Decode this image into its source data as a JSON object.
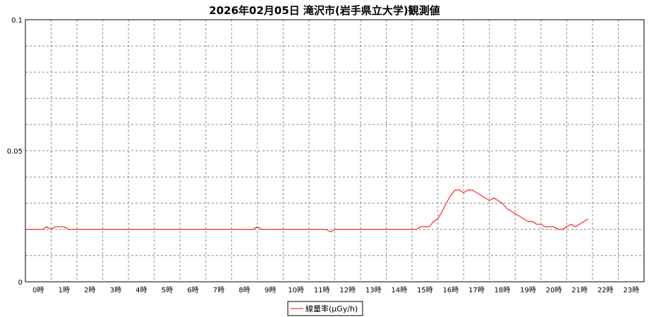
{
  "chart_data": {
    "type": "line",
    "title": "2026年02月05日 滝沢市(岩手県立大学)観測値",
    "xlabel": "",
    "ylabel": "",
    "ylim": [
      0,
      0.1
    ],
    "y_ticks": [
      "0",
      "0.05",
      "0.1"
    ],
    "categories": [
      "0時",
      "1時",
      "2時",
      "3時",
      "4時",
      "5時",
      "6時",
      "7時",
      "8時",
      "9時",
      "10時",
      "11時",
      "12時",
      "13時",
      "14時",
      "15時",
      "16時",
      "17時",
      "18時",
      "19時",
      "20時",
      "21時",
      "22時",
      "23時"
    ],
    "grid": true,
    "legend_position": "bottom",
    "series": [
      {
        "name": "線量率(μGy/h)",
        "color": "#ff0000",
        "x": [
          0,
          0.17,
          0.33,
          0.5,
          0.67,
          0.83,
          1,
          1.17,
          1.33,
          1.5,
          1.67,
          1.83,
          2,
          2.17,
          2.33,
          2.5,
          2.67,
          2.83,
          3,
          3.17,
          3.33,
          3.5,
          3.67,
          3.83,
          4,
          4.17,
          4.33,
          4.5,
          4.67,
          4.83,
          5,
          5.17,
          5.33,
          5.5,
          5.67,
          5.83,
          6,
          6.17,
          6.33,
          6.5,
          6.67,
          6.83,
          7,
          7.17,
          7.33,
          7.5,
          7.67,
          7.83,
          8,
          8.17,
          8.33,
          8.5,
          8.67,
          8.83,
          9,
          9.17,
          9.33,
          9.5,
          9.67,
          9.83,
          10,
          10.17,
          10.33,
          10.5,
          10.67,
          10.83,
          11,
          11.17,
          11.33,
          11.5,
          11.67,
          11.83,
          12,
          12.17,
          12.33,
          12.5,
          12.67,
          12.83,
          13,
          13.17,
          13.33,
          13.5,
          13.67,
          13.83,
          14,
          14.17,
          14.33,
          14.5,
          14.67,
          14.83,
          15,
          15.17,
          15.33,
          15.5,
          15.67,
          15.83,
          16,
          16.17,
          16.33,
          16.5,
          16.67,
          16.83,
          17,
          17.17,
          17.33,
          17.5,
          17.67,
          17.83,
          18,
          18.17,
          18.33,
          18.5,
          18.67,
          18.83,
          19,
          19.17,
          19.33,
          19.5,
          19.67,
          19.83,
          20,
          20.17,
          20.33,
          20.5,
          20.67,
          20.83,
          21,
          21.17,
          21.33,
          21.5,
          21.67,
          21.83
        ],
        "values": [
          0.02,
          0.02,
          0.02,
          0.02,
          0.02,
          0.021,
          0.02,
          0.021,
          0.021,
          0.021,
          0.02,
          0.02,
          0.02,
          0.02,
          0.02,
          0.02,
          0.02,
          0.02,
          0.02,
          0.02,
          0.02,
          0.02,
          0.02,
          0.02,
          0.02,
          0.02,
          0.02,
          0.02,
          0.02,
          0.02,
          0.02,
          0.02,
          0.02,
          0.02,
          0.02,
          0.02,
          0.02,
          0.02,
          0.02,
          0.02,
          0.02,
          0.02,
          0.02,
          0.02,
          0.02,
          0.02,
          0.02,
          0.02,
          0.02,
          0.02,
          0.02,
          0.02,
          0.02,
          0.02,
          0.021,
          0.02,
          0.02,
          0.02,
          0.02,
          0.02,
          0.02,
          0.02,
          0.02,
          0.02,
          0.02,
          0.02,
          0.02,
          0.02,
          0.02,
          0.02,
          0.02,
          0.019,
          0.02,
          0.02,
          0.02,
          0.02,
          0.02,
          0.02,
          0.02,
          0.02,
          0.02,
          0.02,
          0.02,
          0.02,
          0.02,
          0.02,
          0.02,
          0.02,
          0.02,
          0.02,
          0.02,
          0.02,
          0.021,
          0.021,
          0.021,
          0.023,
          0.024,
          0.027,
          0.03,
          0.033,
          0.035,
          0.035,
          0.034,
          0.035,
          0.035,
          0.034,
          0.033,
          0.032,
          0.031,
          0.032,
          0.031,
          0.03,
          0.028,
          0.027,
          0.026,
          0.025,
          0.024,
          0.023,
          0.023,
          0.022,
          0.022,
          0.021,
          0.021,
          0.021,
          0.02,
          0.02,
          0.021,
          0.022,
          0.021,
          0.022,
          0.023,
          0.024
        ]
      }
    ]
  }
}
